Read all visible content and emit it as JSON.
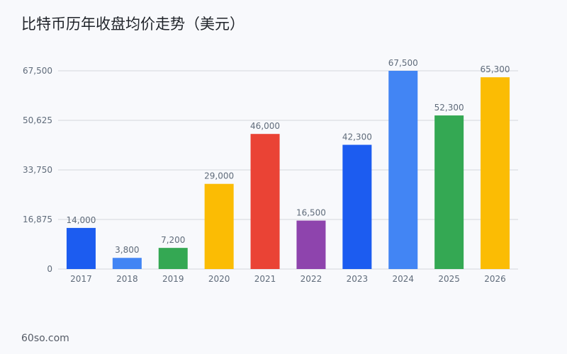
{
  "title": "比特币历年收盘均价走势（美元）",
  "footer": "60so.com",
  "colors": {
    "blue": "#1c5cf0",
    "light_blue": "#4285f4",
    "green": "#34a853",
    "yellow": "#fbbc04",
    "red": "#ea4335",
    "purple": "#8e44ad",
    "grid": "#d3d6dc",
    "label": "#5f6b7a"
  },
  "chart_data": {
    "type": "bar",
    "title": "比特币历年收盘均价走势（美元）",
    "xlabel": "",
    "ylabel": "",
    "ylim": [
      0,
      67500
    ],
    "yticks": [
      "0",
      "16,875",
      "33,750",
      "50,625",
      "67,500"
    ],
    "ytick_values": [
      0,
      16875,
      33750,
      50625,
      67500
    ],
    "grid": true,
    "legend": "none",
    "categories": [
      "2017",
      "2018",
      "2019",
      "2020",
      "2021",
      "2022",
      "2023",
      "2024",
      "2025",
      "2026"
    ],
    "values": [
      14000,
      3800,
      7200,
      29000,
      46000,
      16500,
      42300,
      67500,
      52300,
      65300
    ],
    "value_labels": [
      "14,000",
      "3,800",
      "7,200",
      "29,000",
      "46,000",
      "16,500",
      "42,300",
      "67,500",
      "52,300",
      "65,300"
    ],
    "bar_colors": [
      "#1c5cf0",
      "#4285f4",
      "#34a853",
      "#fbbc04",
      "#ea4335",
      "#8e44ad",
      "#1c5cf0",
      "#4285f4",
      "#34a853",
      "#fbbc04"
    ]
  }
}
